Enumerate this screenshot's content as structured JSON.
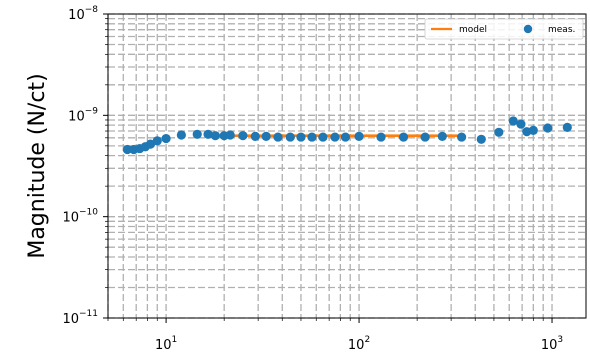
{
  "chart_data": {
    "type": "scatter",
    "xscale": "log",
    "yscale": "log",
    "xlim": [
      5,
      1500
    ],
    "ylim": [
      1e-11,
      1e-08
    ],
    "xlabel": "",
    "ylabel": "Magnitude (N/ct)",
    "grid": true,
    "legend": "top-right",
    "x_ticks": [
      {
        "value": 10,
        "base": "10",
        "exp": "1"
      },
      {
        "value": 100,
        "base": "10",
        "exp": "2"
      },
      {
        "value": 1000,
        "base": "10",
        "exp": "3"
      }
    ],
    "y_ticks": [
      {
        "value": 1e-11,
        "base": "10",
        "exp": "−11"
      },
      {
        "value": 1e-10,
        "base": "10",
        "exp": "−10"
      },
      {
        "value": 1e-09,
        "base": "10",
        "exp": "−9"
      },
      {
        "value": 1e-08,
        "base": "10",
        "exp": "−8"
      }
    ],
    "series": [
      {
        "name": "model",
        "kind": "line",
        "color": "#ff7f0e",
        "x": [
          18,
          350
        ],
        "y": [
          6.3e-10,
          6.3e-10
        ]
      },
      {
        "name": "meas.",
        "kind": "scatter",
        "color": "#1f77b4",
        "x": [
          6.3,
          6.8,
          7.3,
          7.8,
          8.3,
          9.0,
          10.0,
          12.0,
          14.5,
          16.5,
          18.0,
          20.0,
          21.5,
          25.0,
          29.0,
          33.0,
          38.0,
          44.0,
          50.0,
          57.0,
          65.0,
          75.0,
          85.0,
          100.0,
          130.0,
          170.0,
          220.0,
          270.0,
          340.0,
          430.0,
          530.0,
          630.0,
          690.0,
          740.0,
          800.0,
          950.0,
          1200.0
        ],
        "y": [
          4.6e-10,
          4.6e-10,
          4.7e-10,
          4.9e-10,
          5.2e-10,
          5.6e-10,
          5.9e-10,
          6.4e-10,
          6.5e-10,
          6.5e-10,
          6.3e-10,
          6.3e-10,
          6.4e-10,
          6.3e-10,
          6.2e-10,
          6.2e-10,
          6.1e-10,
          6.1e-10,
          6.1e-10,
          6.1e-10,
          6.1e-10,
          6.1e-10,
          6.1e-10,
          6.2e-10,
          6.1e-10,
          6.1e-10,
          6.1e-10,
          6.2e-10,
          6.1e-10,
          5.8e-10,
          6.8e-10,
          8.8e-10,
          8.2e-10,
          6.9e-10,
          7.1e-10,
          7.5e-10,
          7.6e-10
        ]
      }
    ]
  }
}
